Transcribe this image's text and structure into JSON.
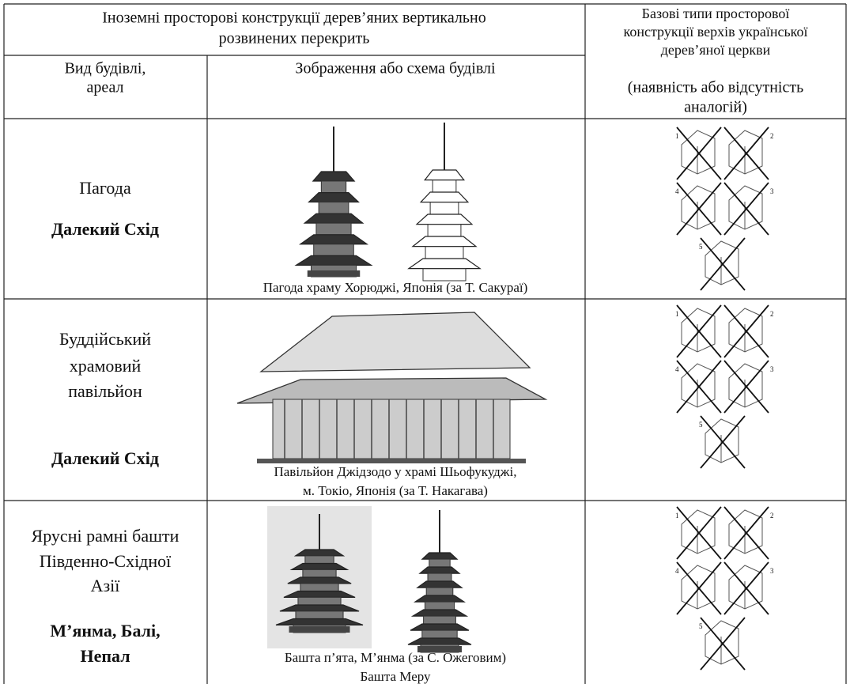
{
  "header": {
    "foreign_title": [
      "Іноземні просторові конструкції дерев’яних вертикально",
      "розвинених перекрить"
    ],
    "basic_types": [
      "Базові типи просторової",
      "конструкції верхів української",
      "дерев’яної церкви",
      "(наявність або відсутність",
      "аналогій)"
    ],
    "building_type": [
      "Вид будівлі,",
      "ареал"
    ],
    "image": "Зображення або схема будівлі"
  },
  "sketch_numbers": [
    "1",
    "2",
    "4",
    "3",
    "5"
  ],
  "rows": [
    {
      "name": [
        "Пагода"
      ],
      "area": [
        "Далекий Схід"
      ],
      "caption": [
        "Пагода храму Хорюджі, Японія (за Т. Сакураї)"
      ]
    },
    {
      "name": [
        "Буддійський",
        "храмовий",
        "павільйон"
      ],
      "area": [
        "Далекий Схід"
      ],
      "caption": [
        "Павільйон Джідзодо у храмі Шьофукуджі,",
        "м. Токіо, Японія (за Т. Накагава)"
      ]
    },
    {
      "name": [
        "Ярусні рамні башти",
        "Південно-Східної",
        "Азії"
      ],
      "area": [
        "М’янма, Балі,",
        "Непал"
      ],
      "caption": [
        "Башта п’ята, М’янма (за С. Ожеговим)",
        "Башта Меру"
      ]
    }
  ]
}
